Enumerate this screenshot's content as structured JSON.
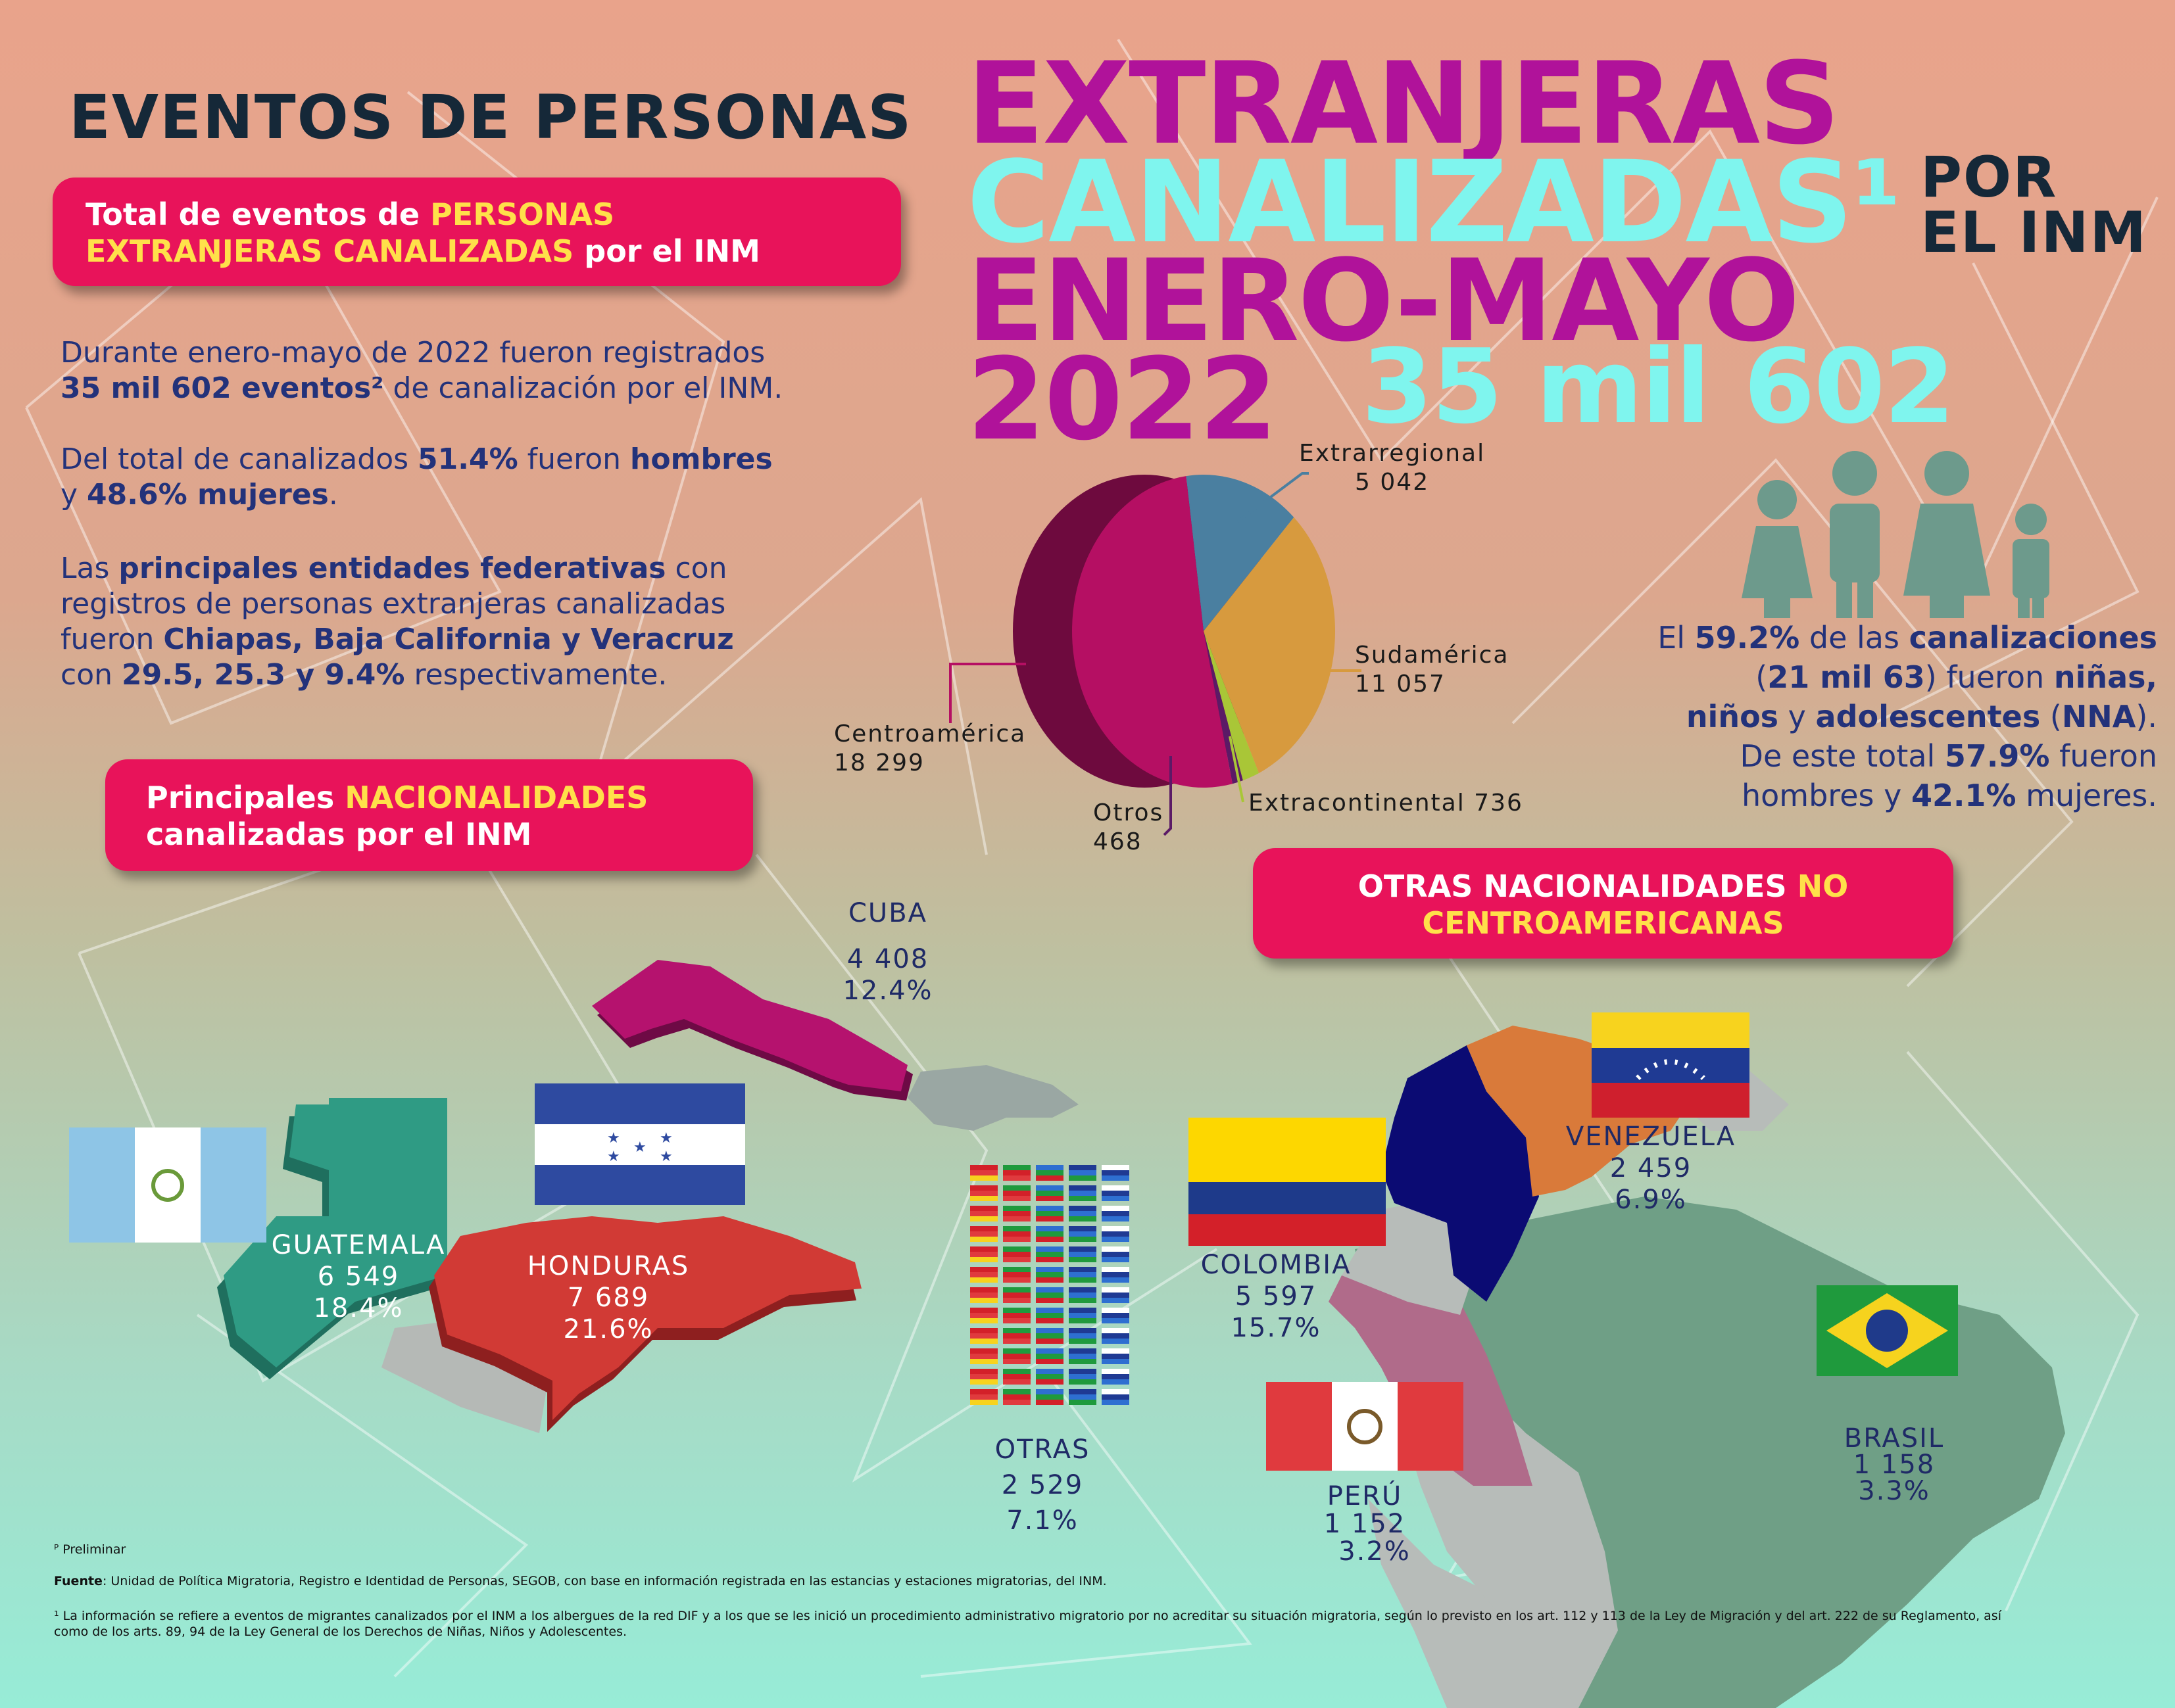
{
  "header": {
    "line1": "EVENTOS DE PERSONAS",
    "line2": "EXTRANJERAS",
    "line3": "CANALIZADAS¹",
    "por": "POR",
    "el_inm": "EL INM",
    "line4": "ENERO-MAYO",
    "year": "2022",
    "total": "35 mil 602"
  },
  "pill_total": {
    "text1": "Total de eventos de ",
    "highlight1": "PERSONAS",
    "highlight2": "EXTRANJERAS CANALIZADAS",
    "text2": " por el INM"
  },
  "summary": {
    "p1a": "Durante enero-mayo de 2022 fueron registrados",
    "p1b": "35 mil  602 eventos²",
    "p1c": " de canalización por el INM.",
    "p2a": "Del total de canalizados ",
    "p2b": "51.4%",
    "p2c": " fueron ",
    "p2d": "hombres",
    "p2e": "y ",
    "p2f": "48.6% mujeres",
    "p2g": ".",
    "p3a": "Las ",
    "p3b": "principales entidades federativas",
    "p3c": " con",
    "p3d": "registros de personas extranjeras canalizadas",
    "p3e": "fueron ",
    "p3f": "Chiapas, Baja California y Veracruz",
    "p3g": "con ",
    "p3h": "29.5, 25.3 y 9.4%",
    "p3i": " respectivamente."
  },
  "chart_data": {
    "type": "pie",
    "categories": [
      "Centroamérica",
      "Extrarregional",
      "Sudamérica",
      "Extracontinental",
      "Otros"
    ],
    "values": [
      18299,
      5042,
      11057,
      736,
      468
    ],
    "labels": {
      "centroamerica": [
        "Centroamérica",
        "18 299"
      ],
      "extrarregional": [
        "Extrarregional",
        "5 042"
      ],
      "sudamerica": [
        "Sudamérica",
        "11 057"
      ],
      "extracontinental": "Extracontinental 736",
      "otros": [
        "Otros",
        "468"
      ]
    },
    "colors": [
      "#b50f63",
      "#4a7fa0",
      "#d79a3e",
      "#a9c637",
      "#5b1a66"
    ]
  },
  "nna": {
    "t1": "El ",
    "t2": "59.2%",
    "t3": " de las ",
    "t4": "canalizaciones",
    "t5": "(",
    "t6": "21 mil 63",
    "t7": ") fueron ",
    "t8": "niñas,",
    "t9": "niños",
    "t10": " y ",
    "t11": "adolescentes",
    "t12": " (",
    "t13": "NNA",
    "t14": ").",
    "t15": "De este total ",
    "t16": "57.9%",
    "t17": " fueron",
    "t18": "hombres y ",
    "t19": "42.1%",
    "t20": " mujeres."
  },
  "pill_nac": {
    "text1": "Principales ",
    "highlight": "NACIONALIDADES",
    "text2": "canalizadas por el INM"
  },
  "pill_otras": {
    "text1": "OTRAS NACIONALIDADES ",
    "highlight1": "NO",
    "highlight2": "CENTROAMERICANAS"
  },
  "countries": {
    "cuba": {
      "name": "CUBA",
      "count": "4 408",
      "pct": "12.4%"
    },
    "guatemala": {
      "name": "GUATEMALA",
      "count": "6 549",
      "pct": "18.4%"
    },
    "honduras": {
      "name": "HONDURAS",
      "count": "7 689",
      "pct": "21.6%"
    },
    "otras": {
      "name": "OTRAS",
      "count": "2 529",
      "pct": "7.1%"
    },
    "colombia": {
      "name": "COLOMBIA",
      "count": "5 597",
      "pct": "15.7%"
    },
    "venezuela": {
      "name": "VENEZUELA",
      "count": "2 459",
      "pct": "6.9%"
    },
    "peru": {
      "name": "PERÚ",
      "count": "1 152",
      "pct": "3.2%"
    },
    "brasil": {
      "name": "BRASIL",
      "count": "1 158",
      "pct": "3.3%"
    }
  },
  "footer": {
    "prelim": "ᴾ Preliminar",
    "fuente_label": "Fuente",
    "fuente": ": Unidad de Política Migratoria, Registro e Identidad de Personas, SEGOB, con base en información registrada en las estancias y estaciones migratorias, del INM.",
    "note1": "¹ La información se refiere a eventos de migrantes canalizados por el INM a los albergues de la red DIF y a los que se les inició un procedimiento administrativo migratorio por no acreditar su situación migratoria, según lo previsto en los art. 112 y 113 de la Ley de Migración y del art. 222 de su Reglamento, así",
    "note2": "como de los arts. 89, 94 de la Ley General de los Derechos de Niñas, Niños y Adolescentes."
  }
}
